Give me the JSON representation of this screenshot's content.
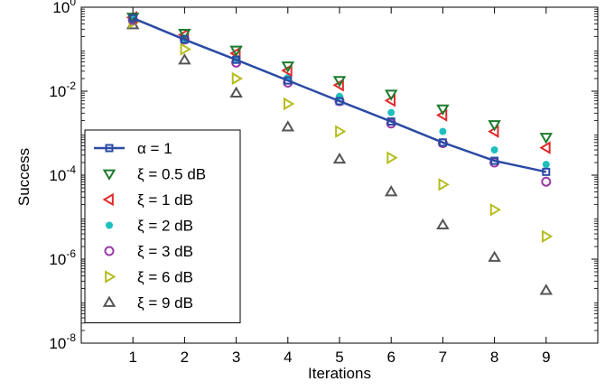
{
  "chart_data": {
    "type": "line",
    "xlabel": "Iterations",
    "ylabel": "Success",
    "yscale": "log",
    "xlim": [
      0,
      10
    ],
    "ylim": [
      1e-08,
      1
    ],
    "x_ticks": [
      1,
      2,
      3,
      4,
      5,
      6,
      7,
      8,
      9
    ],
    "y_ticks": [
      {
        "value": 1,
        "mantissa": "10",
        "exp": "0"
      },
      {
        "value": 0.01,
        "mantissa": "10",
        "exp": "-2"
      },
      {
        "value": 0.0001,
        "mantissa": "10",
        "exp": "-4"
      },
      {
        "value": 1e-06,
        "mantissa": "10",
        "exp": "-6"
      },
      {
        "value": 1e-08,
        "mantissa": "10",
        "exp": "-8"
      }
    ],
    "grid": false,
    "legend_position": "left",
    "x": [
      1,
      2,
      3,
      4,
      5,
      6,
      7,
      8,
      9
    ],
    "series": [
      {
        "name": "α = 1",
        "marker": "square",
        "line": true,
        "color": "#2b4ba4",
        "values": [
          0.55,
          0.17,
          0.056,
          0.018,
          0.0058,
          0.0019,
          0.0006,
          0.00022,
          0.00012
        ]
      },
      {
        "name": "ξ = 0.5 dB",
        "marker": "triangle-down",
        "line": false,
        "color": "#1e7b2e",
        "values": [
          0.58,
          0.24,
          0.095,
          0.04,
          0.018,
          0.0085,
          0.0038,
          0.0016,
          0.0008
        ]
      },
      {
        "name": "ξ = 1 dB",
        "marker": "triangle-left",
        "line": false,
        "color": "#e02a2a",
        "values": [
          0.57,
          0.22,
          0.08,
          0.031,
          0.014,
          0.006,
          0.0027,
          0.0011,
          0.00045
        ]
      },
      {
        "name": "ξ = 2 dB",
        "marker": "dot",
        "line": false,
        "color": "#1fbfbf",
        "values": [
          0.52,
          0.18,
          0.06,
          0.021,
          0.0075,
          0.0031,
          0.0011,
          0.0004,
          0.00018
        ]
      },
      {
        "name": "ξ = 3 dB",
        "marker": "circle",
        "line": false,
        "color": "#9b3aa8",
        "values": [
          0.5,
          0.17,
          0.048,
          0.016,
          0.0058,
          0.0017,
          0.00058,
          0.0002,
          7e-05
        ]
      },
      {
        "name": "ξ = 6 dB",
        "marker": "triangle-right",
        "line": false,
        "color": "#b5bd1f",
        "values": [
          0.44,
          0.1,
          0.02,
          0.005,
          0.0011,
          0.00026,
          6e-05,
          1.5e-05,
          3.5e-06
        ]
      },
      {
        "name": "ξ = 9 dB",
        "marker": "triangle-up",
        "line": false,
        "color": "#555555",
        "values": [
          0.38,
          0.055,
          0.009,
          0.0014,
          0.00024,
          4e-05,
          6.5e-06,
          1.1e-06,
          1.8e-07
        ]
      }
    ]
  }
}
